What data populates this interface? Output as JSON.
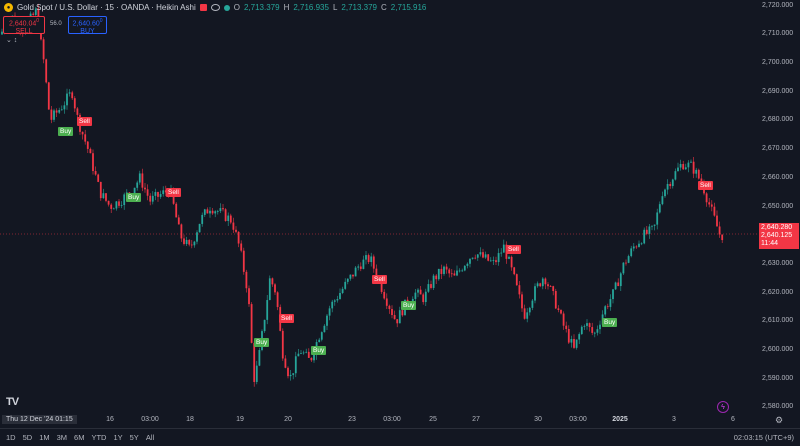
{
  "legend": {
    "title": "Gold Spot / U.S. Dollar · 15 · OANDA · Heikin Ashi",
    "o_label": "O",
    "o": "2,713.379",
    "h_label": "H",
    "h": "2,716.935",
    "l_label": "L",
    "l": "2,713.379",
    "c_label": "C",
    "c": "2,715.916"
  },
  "trade": {
    "sell_price": "2,640.04",
    "sell_price_sup": "0",
    "sell_label": "SELL",
    "spread": "56.0",
    "buy_price": "2,640.60",
    "buy_price_sup": "0",
    "buy_label": "BUY"
  },
  "price_axis": {
    "ticks": [
      "2,720.000",
      "2,710.000",
      "2,700.000",
      "2,690.000",
      "2,680.000",
      "2,670.000",
      "2,660.000",
      "2,650.000",
      "2,640.000",
      "2,630.000",
      "2,620.000",
      "2,610.000",
      "2,600.000",
      "2,590.000",
      "2,580.000"
    ],
    "top_partial": "2,720.000"
  },
  "price_tag": {
    "line1": "2,640.280",
    "line2": "2,640.125",
    "line3": "11:44"
  },
  "time_axis": {
    "crosshair": "Thu 12 Dec '24  01:15",
    "labels": [
      "16",
      "03:00",
      "18",
      "19",
      "20",
      "23",
      "03:00",
      "25",
      "27",
      "30",
      "03:00",
      "2025",
      "3",
      "6"
    ]
  },
  "markers": [
    {
      "label": "Buy",
      "type": "buy"
    },
    {
      "label": "Sell",
      "type": "sell"
    },
    {
      "label": "Buy",
      "type": "buy"
    },
    {
      "label": "Sell",
      "type": "sell"
    },
    {
      "label": "Buy",
      "type": "buy"
    },
    {
      "label": "Sell",
      "type": "sell"
    },
    {
      "label": "Buy",
      "type": "buy"
    },
    {
      "label": "Sell",
      "type": "sell"
    },
    {
      "label": "Buy",
      "type": "buy"
    },
    {
      "label": "Sell",
      "type": "sell"
    },
    {
      "label": "Buy",
      "type": "buy"
    },
    {
      "label": "Sell",
      "type": "sell"
    }
  ],
  "bottom_bar": {
    "ranges": [
      "1D",
      "5D",
      "1M",
      "3M",
      "6M",
      "YTD",
      "1Y",
      "5Y",
      "All"
    ],
    "clock": "02:03:15 (UTC+9)"
  },
  "logo": "TV",
  "colors": {
    "up": "#26a69a",
    "down": "#f23645",
    "bg": "#131722",
    "buy": "#4caf50",
    "sell": "#f23645"
  },
  "chart_data": {
    "type": "candlestick",
    "chart_style": "Heikin Ashi",
    "symbol": "XAUUSD",
    "interval": "15",
    "ylim": [
      2578,
      2722
    ],
    "current_price": 2640.28,
    "price_path": [
      [
        0,
        2710
      ],
      [
        12,
        2716
      ],
      [
        24,
        2712
      ],
      [
        36,
        2718
      ],
      [
        44,
        2700
      ],
      [
        50,
        2680
      ],
      [
        62,
        2685
      ],
      [
        72,
        2690
      ],
      [
        78,
        2680
      ],
      [
        88,
        2670
      ],
      [
        100,
        2655
      ],
      [
        110,
        2650
      ],
      [
        120,
        2652
      ],
      [
        130,
        2655
      ],
      [
        140,
        2660
      ],
      [
        150,
        2652
      ],
      [
        160,
        2654
      ],
      [
        170,
        2656
      ],
      [
        180,
        2640
      ],
      [
        190,
        2635
      ],
      [
        200,
        2645
      ],
      [
        210,
        2650
      ],
      [
        220,
        2648
      ],
      [
        232,
        2645
      ],
      [
        240,
        2635
      ],
      [
        248,
        2620
      ],
      [
        254,
        2590
      ],
      [
        258,
        2595
      ],
      [
        264,
        2610
      ],
      [
        270,
        2625
      ],
      [
        276,
        2620
      ],
      [
        282,
        2600
      ],
      [
        290,
        2590
      ],
      [
        300,
        2600
      ],
      [
        310,
        2596
      ],
      [
        320,
        2606
      ],
      [
        330,
        2615
      ],
      [
        340,
        2620
      ],
      [
        350,
        2625
      ],
      [
        360,
        2630
      ],
      [
        370,
        2632
      ],
      [
        378,
        2625
      ],
      [
        386,
        2618
      ],
      [
        396,
        2610
      ],
      [
        404,
        2615
      ],
      [
        414,
        2620
      ],
      [
        424,
        2618
      ],
      [
        434,
        2625
      ],
      [
        444,
        2628
      ],
      [
        454,
        2625
      ],
      [
        464,
        2630
      ],
      [
        474,
        2634
      ],
      [
        484,
        2632
      ],
      [
        494,
        2630
      ],
      [
        504,
        2636
      ],
      [
        514,
        2625
      ],
      [
        524,
        2612
      ],
      [
        534,
        2620
      ],
      [
        544,
        2626
      ],
      [
        554,
        2618
      ],
      [
        564,
        2608
      ],
      [
        574,
        2600
      ],
      [
        584,
        2610
      ],
      [
        594,
        2605
      ],
      [
        604,
        2614
      ],
      [
        614,
        2620
      ],
      [
        624,
        2630
      ],
      [
        634,
        2636
      ],
      [
        644,
        2640
      ],
      [
        654,
        2642
      ],
      [
        662,
        2655
      ],
      [
        672,
        2660
      ],
      [
        682,
        2665
      ],
      [
        692,
        2664
      ],
      [
        702,
        2658
      ],
      [
        712,
        2648
      ],
      [
        720,
        2640
      ]
    ]
  }
}
